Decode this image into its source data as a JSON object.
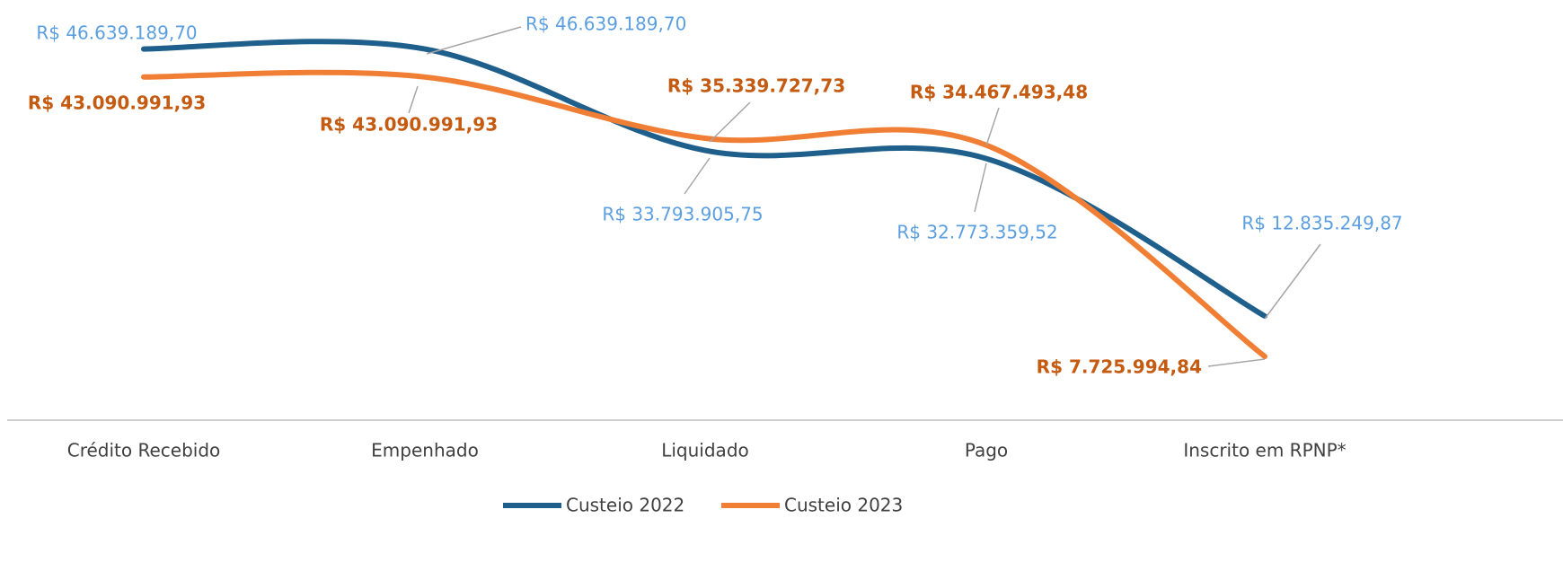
{
  "chart_data": {
    "type": "line",
    "categories": [
      "Crédito Recebido",
      "Empenhado",
      "Liquidado",
      "Pago",
      "Inscrito em RPNP*"
    ],
    "series": [
      {
        "name": "Custeio 2022",
        "color": "#1f5f8b",
        "label_color": "#5b9fe0",
        "values": [
          46639189.7,
          46639189.7,
          33793905.75,
          32773359.52,
          12835249.87
        ],
        "value_labels": [
          "R$ 46.639.189,70",
          "R$ 46.639.189,70",
          "R$ 33.793.905,75",
          "R$ 32.773.359,52",
          "R$ 12.835.249,87"
        ]
      },
      {
        "name": "Custeio 2023",
        "color": "#f07f35",
        "label_color": "#c55a11",
        "values": [
          43090991.93,
          43090991.93,
          35339727.73,
          34467493.48,
          7725994.84
        ],
        "value_labels": [
          "R$ 43.090.991,93",
          "R$ 43.090.991,93",
          "R$ 35.339.727,73",
          "R$ 34.467.493,48",
          "R$ 7.725.994,84"
        ]
      }
    ],
    "ylim": [
      0,
      50000000
    ],
    "smooth": true,
    "legend": "bottom"
  }
}
